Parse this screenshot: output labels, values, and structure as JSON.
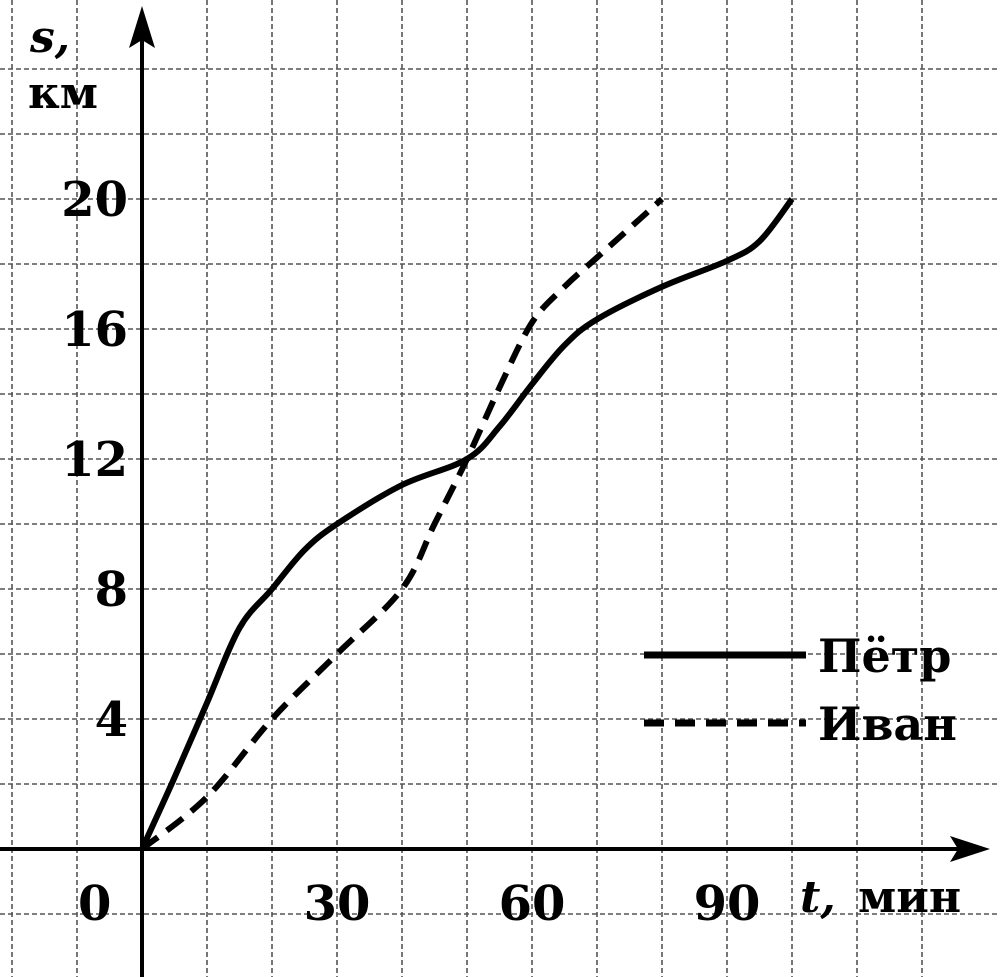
{
  "chart_data": {
    "type": "line",
    "y_axis": {
      "symbol": "s,",
      "unit": "км"
    },
    "x_axis": {
      "symbol": "t,",
      "unit": "мин"
    },
    "origin_label": "0",
    "x_ticks": [
      30,
      60,
      90
    ],
    "y_ticks": [
      4,
      8,
      12,
      16,
      20
    ],
    "xlim": [
      -20,
      127
    ],
    "ylim": [
      -4,
      25.5
    ],
    "grid": true,
    "grid_step_x": 10,
    "grid_step_y": 2,
    "legend_position": "right",
    "series": [
      {
        "name": "Пётр",
        "style": "solid",
        "color": "#000000",
        "points": [
          [
            0,
            0
          ],
          [
            5,
            2.2
          ],
          [
            10,
            4.5
          ],
          [
            15,
            6.8
          ],
          [
            20,
            8
          ],
          [
            25,
            9.2
          ],
          [
            30,
            10
          ],
          [
            40,
            11.2
          ],
          [
            50,
            12
          ],
          [
            55,
            13
          ],
          [
            60,
            14.3
          ],
          [
            65,
            15.5
          ],
          [
            70,
            16.3
          ],
          [
            80,
            17.3
          ],
          [
            90,
            18.1
          ],
          [
            95,
            18.7
          ],
          [
            100,
            20
          ]
        ]
      },
      {
        "name": "Иван",
        "style": "dashed",
        "color": "#000000",
        "points": [
          [
            0,
            0
          ],
          [
            10,
            1.6
          ],
          [
            20,
            4
          ],
          [
            30,
            6
          ],
          [
            40,
            8
          ],
          [
            45,
            10
          ],
          [
            50,
            12
          ],
          [
            55,
            14.2
          ],
          [
            60,
            16.2
          ],
          [
            65,
            17.3
          ],
          [
            70,
            18.2
          ],
          [
            80,
            20
          ]
        ]
      }
    ]
  }
}
